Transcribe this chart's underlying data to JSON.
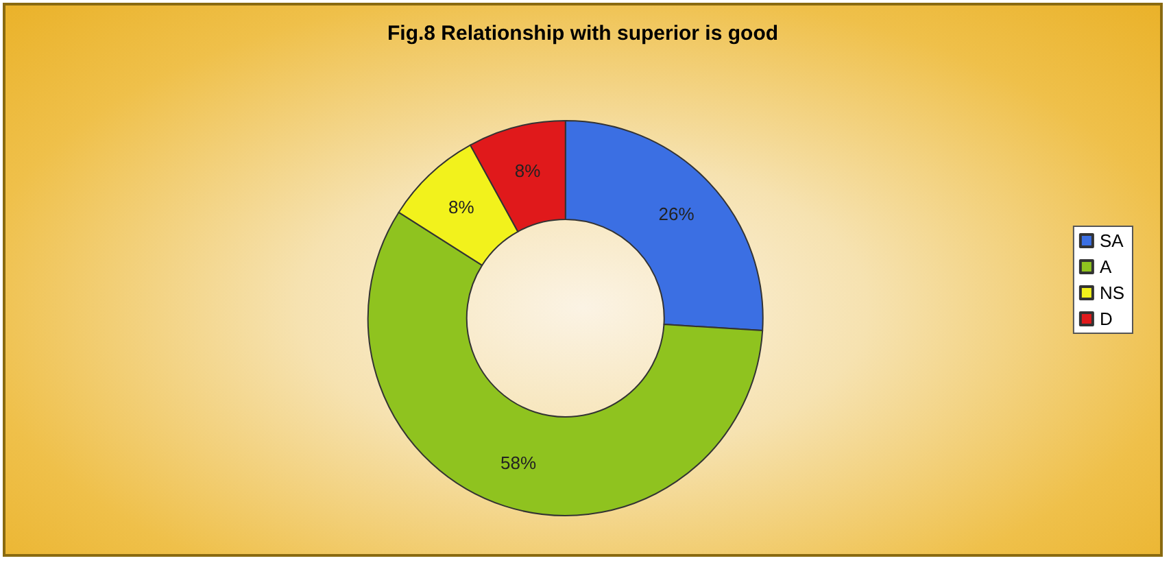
{
  "chart_data": {
    "type": "donut",
    "title": "Fig.8 Relationship with superior is good",
    "categories": [
      "SA",
      "A",
      "NS",
      "D"
    ],
    "values": [
      26,
      58,
      8,
      8
    ],
    "colors": [
      "#3b6fe3",
      "#8fc31f",
      "#f2f21c",
      "#e0191b"
    ],
    "value_labels": [
      "26%",
      "58%",
      "8%",
      "8%"
    ],
    "legend": "right"
  }
}
